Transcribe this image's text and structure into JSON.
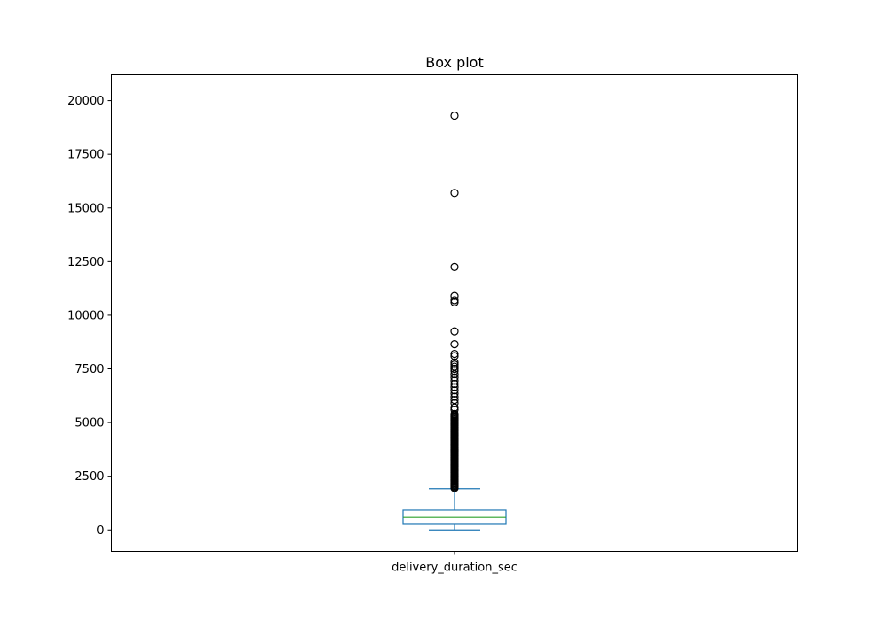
{
  "chart_data": {
    "type": "box",
    "title": "Box plot",
    "xlabel": "",
    "ylabel": "",
    "ylim": [
      -1000,
      21200
    ],
    "yticks": [
      0,
      2500,
      5000,
      7500,
      10000,
      12500,
      15000,
      17500,
      20000
    ],
    "grid": false,
    "series": [
      {
        "name": "delivery_duration_sec",
        "whisker_low": 0,
        "q1": 260,
        "median": 580,
        "q3": 920,
        "whisker_high": 1920,
        "outliers": [
          1950,
          2000,
          2050,
          2100,
          2150,
          2200,
          2250,
          2300,
          2350,
          2400,
          2450,
          2500,
          2550,
          2600,
          2650,
          2700,
          2750,
          2800,
          2850,
          2900,
          2950,
          3000,
          3050,
          3100,
          3150,
          3200,
          3250,
          3300,
          3350,
          3400,
          3450,
          3500,
          3550,
          3600,
          3650,
          3700,
          3750,
          3800,
          3850,
          3900,
          3950,
          4000,
          4050,
          4100,
          4150,
          4200,
          4250,
          4300,
          4350,
          4400,
          4450,
          4500,
          4550,
          4600,
          4650,
          4700,
          4750,
          4800,
          4850,
          4900,
          4950,
          5000,
          5050,
          5100,
          5150,
          5200,
          5250,
          5300,
          5350,
          5400,
          5600,
          5700,
          5900,
          6050,
          6200,
          6350,
          6500,
          6650,
          6800,
          6950,
          7100,
          7250,
          7400,
          7500,
          7600,
          7700,
          7800,
          8100,
          8200,
          8650,
          9250,
          10600,
          10700,
          10900,
          12250,
          15700,
          19300
        ]
      }
    ],
    "colors": {
      "box": "#1f77b4",
      "median": "#2ca02c",
      "outlier_edge": "#000000"
    }
  }
}
